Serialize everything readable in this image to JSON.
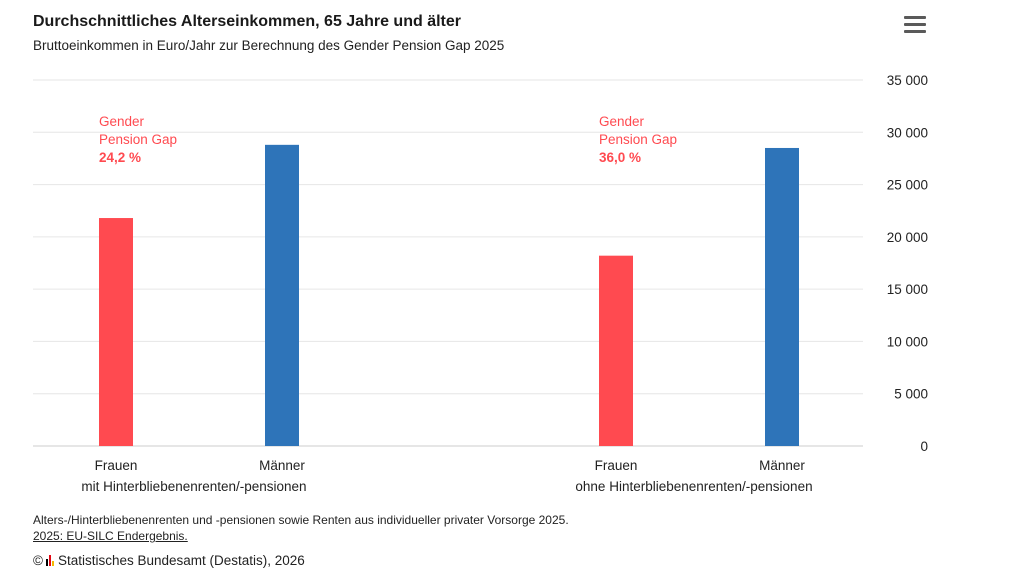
{
  "header": {
    "title": "Durchschnittliches Alterseinkommen, 65 Jahre und älter",
    "subtitle": "Bruttoeinkommen in Euro/Jahr zur Berechnung des Gender Pension Gap 2025"
  },
  "menu": {
    "icon": "hamburger-menu-icon"
  },
  "colors": {
    "frauen": "#ff4a50",
    "maenner": "#2e74b9",
    "annotation": "#ff4a50",
    "grid": "#e6e6e6",
    "axis": "#cccccc"
  },
  "chart_data": {
    "type": "bar",
    "groups": [
      {
        "name": "mit Hinterbliebenenrenten/-pensionen",
        "bars": [
          {
            "label": "Frauen",
            "value": 21800
          },
          {
            "label": "Männer",
            "value": 28800
          }
        ],
        "annotation": {
          "line1": "Gender",
          "line2": "Pension Gap",
          "value": "24,2 %"
        }
      },
      {
        "name": "ohne Hinterbliebenenrenten/-pensionen",
        "bars": [
          {
            "label": "Frauen",
            "value": 18200
          },
          {
            "label": "Männer",
            "value": 28500
          }
        ],
        "annotation": {
          "line1": "Gender",
          "line2": "Pension Gap",
          "value": "36,0 %"
        }
      }
    ],
    "yaxis": {
      "position": "right",
      "ylim": [
        0,
        35000
      ],
      "ticks": [
        0,
        5000,
        10000,
        15000,
        20000,
        25000,
        30000,
        35000
      ],
      "tick_labels": [
        "0",
        "5 000",
        "10 000",
        "15 000",
        "20 000",
        "25 000",
        "30 000",
        "35 000"
      ]
    },
    "grid": true
  },
  "footer": {
    "note": "Alters-/Hinterbliebenenrenten und -pensionen sowie Renten aus individueller privater Vorsorge 2025.",
    "source": "2025: EU-SILC Endergebnis.",
    "copyright_symbol": "©",
    "copyright_text": "Statistisches Bundesamt (Destatis), 2026"
  }
}
